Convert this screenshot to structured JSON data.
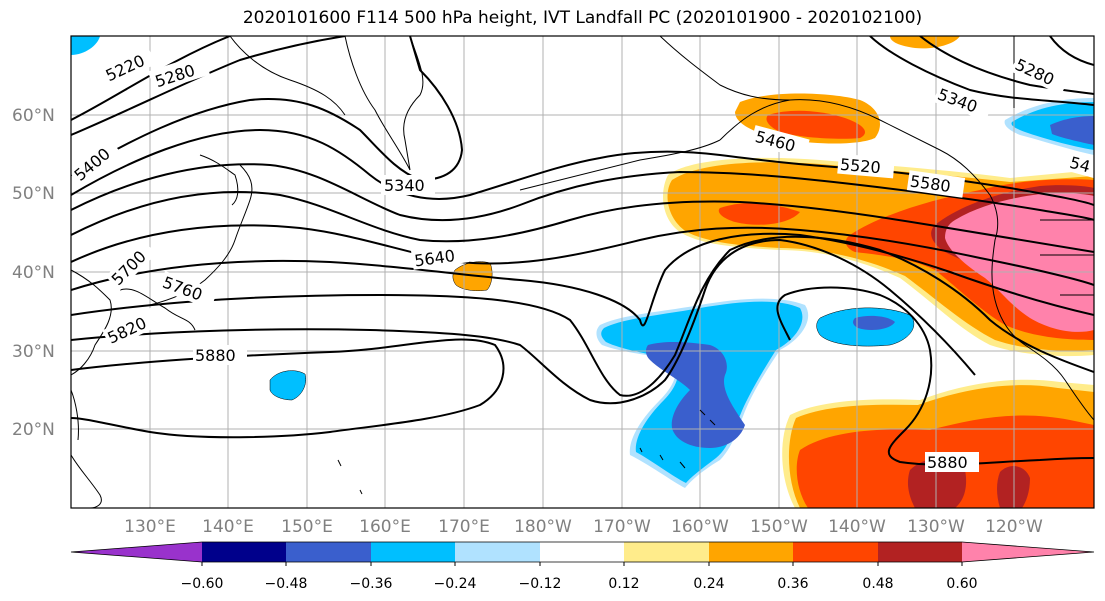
{
  "title": "2020101600 F114 500 hPa height, IVT Landfall PC (2020101900 - 2020102100)",
  "lat_labels": [
    "60°N",
    "50°N",
    "40°N",
    "30°N",
    "20°N"
  ],
  "lon_labels": [
    "130°E",
    "140°E",
    "150°E",
    "160°E",
    "170°E",
    "180°W",
    "170°W",
    "160°W",
    "150°W",
    "140°W",
    "130°W",
    "120°W"
  ],
  "contour_labels": [
    "5220",
    "5280",
    "5400",
    "5340",
    "5460",
    "5520",
    "5580",
    "5640",
    "5700",
    "5760",
    "5820",
    "5880",
    "5880",
    "5280",
    "5340",
    "54"
  ],
  "colorbar": {
    "colors": [
      "#9932cc",
      "#00008b",
      "#3a5fcd",
      "#00bfff",
      "#b0e2ff",
      "#ffffff",
      "#ffec8b",
      "#ffa500",
      "#ff4500",
      "#b22222",
      "#ff82ab"
    ],
    "ticks": [
      "−0.60",
      "−0.48",
      "−0.36",
      "−0.24",
      "−0.12",
      "0.12",
      "0.24",
      "0.36",
      "0.48",
      "0.60"
    ]
  },
  "colors": {
    "positive_light": "#ffec8b",
    "positive_mid": "#ffa500",
    "positive_high": "#ff4500",
    "positive_higher": "#b22222",
    "positive_max": "#ff82ab",
    "negative_light": "#b0e2ff",
    "negative_mid": "#00bfff",
    "negative_high": "#3a5fcd",
    "negative_higher": "#00008b",
    "negative_max": "#9932cc",
    "grid": "#b0b0b0",
    "axis_label": "#808080"
  }
}
